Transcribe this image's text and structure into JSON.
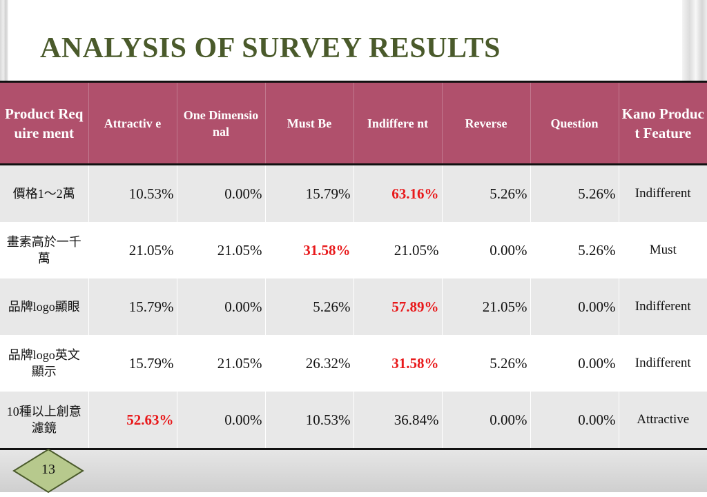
{
  "title": "ANALYSIS OF SURVEY RESULTS",
  "colors": {
    "header_bg": "#b0506c",
    "title": "#4a5a2b",
    "highlight": "#e8191b"
  },
  "table": {
    "headers": [
      "Product Requirement",
      "Attractive",
      "One Dimensional",
      "Must Be",
      "Indifferent",
      "Reverse",
      "Question",
      "Kano Product Feature"
    ],
    "header_display": [
      "Product Require ment",
      "Attractiv e",
      "One Dimensio nal",
      "Must Be",
      "Indiffere nt",
      "Reverse",
      "Question",
      "Kano Product Feature"
    ],
    "rows": [
      {
        "requirement": "價格1～2萬",
        "attractive": "10.53%",
        "one_dimensional": "0.00%",
        "must_be": "15.79%",
        "indifferent": "63.16%",
        "reverse": "5.26%",
        "question": "5.26%",
        "kano": "Indifferent",
        "highlight": "indifferent"
      },
      {
        "requirement": "畫素高於一千萬",
        "attractive": "21.05%",
        "one_dimensional": "21.05%",
        "must_be": "31.58%",
        "indifferent": "21.05%",
        "reverse": "0.00%",
        "question": "5.26%",
        "kano": "Must",
        "highlight": "must_be"
      },
      {
        "requirement": "品牌logo顯眼",
        "attractive": "15.79%",
        "one_dimensional": "0.00%",
        "must_be": "5.26%",
        "indifferent": "57.89%",
        "reverse": "21.05%",
        "question": "0.00%",
        "kano": "Indifferent",
        "highlight": "indifferent"
      },
      {
        "requirement": "品牌logo英文顯示",
        "attractive": "15.79%",
        "one_dimensional": "21.05%",
        "must_be": "26.32%",
        "indifferent": "31.58%",
        "reverse": "5.26%",
        "question": "0.00%",
        "kano": "Indifferent",
        "highlight": "indifferent"
      },
      {
        "requirement": "10種以上創意濾鏡",
        "attractive": "52.63%",
        "one_dimensional": "0.00%",
        "must_be": "10.53%",
        "indifferent": "36.84%",
        "reverse": "0.00%",
        "question": "0.00%",
        "kano": "Attractive",
        "highlight": "attractive"
      }
    ]
  },
  "page_number": "13"
}
